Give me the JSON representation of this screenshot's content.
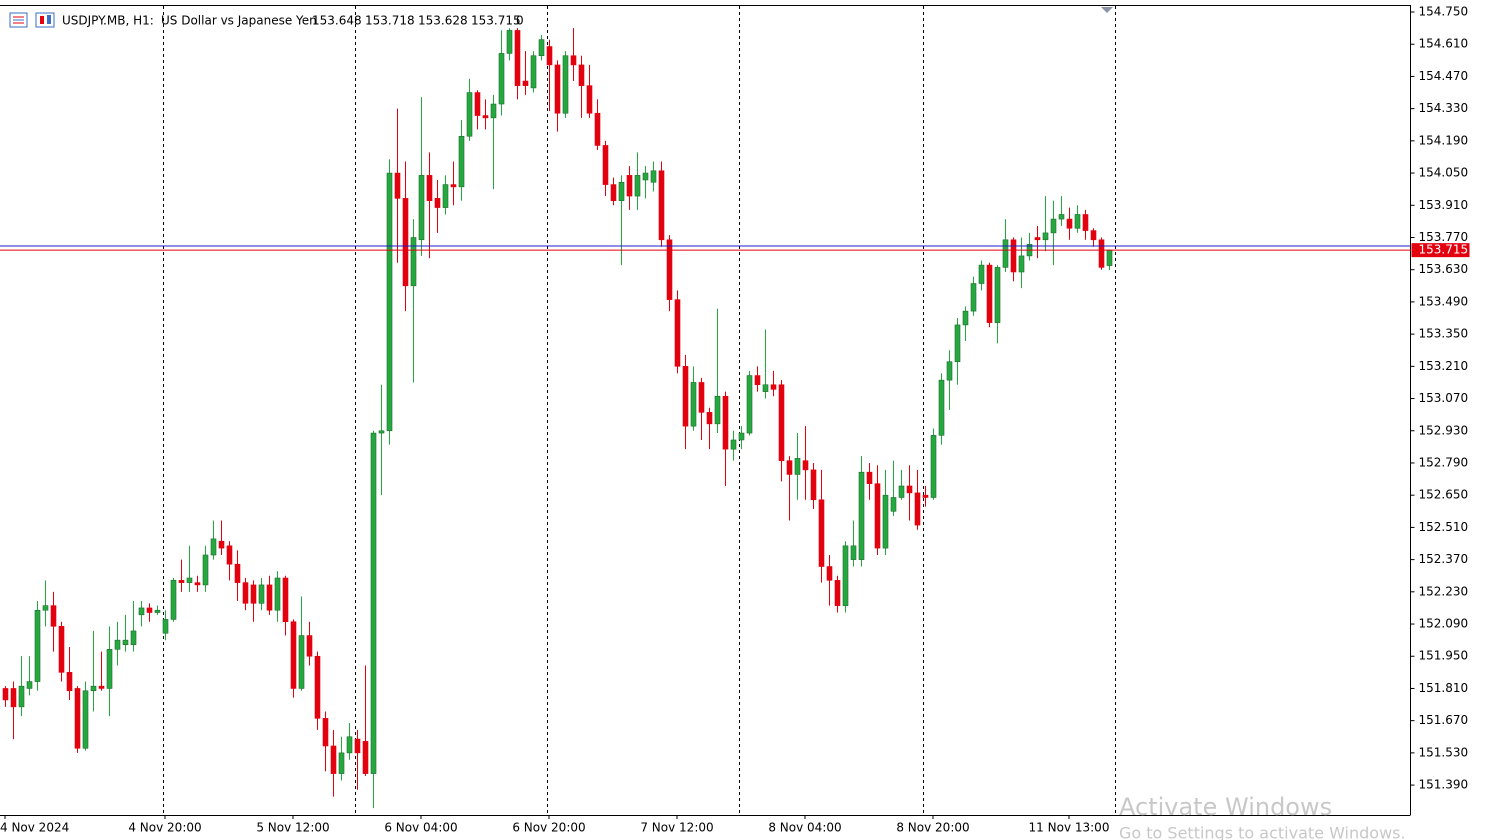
{
  "chart_data": {
    "type": "candlestick",
    "title": "USDJPY.MB, H1:",
    "subtitle": "US Dollar vs Japanese Yen",
    "spread": 0,
    "up_color": "#26a841",
    "down_color": "#e3000f",
    "bid_color": "#e3000f",
    "ask_color": "#1c1cc8",
    "ask": 153.733,
    "grid": false,
    "ylim": [
      151.26,
      154.8
    ],
    "yticks": [
      {
        "value": 154.75,
        "label": "154.750"
      },
      {
        "value": 154.61,
        "label": "154.610"
      },
      {
        "value": 154.47,
        "label": "154.470"
      },
      {
        "value": 154.33,
        "label": "154.330"
      },
      {
        "value": 154.19,
        "label": "154.190"
      },
      {
        "value": 154.05,
        "label": "154.050"
      },
      {
        "value": 153.91,
        "label": "153.910"
      },
      {
        "value": 153.77,
        "label": "153.770"
      },
      {
        "value": 153.63,
        "label": "153.630"
      },
      {
        "value": 153.49,
        "label": "153.490"
      },
      {
        "value": 153.35,
        "label": "153.350"
      },
      {
        "value": 153.21,
        "label": "153.210"
      },
      {
        "value": 153.07,
        "label": "153.070"
      },
      {
        "value": 152.93,
        "label": "152.930"
      },
      {
        "value": 152.79,
        "label": "152.790"
      },
      {
        "value": 152.65,
        "label": "152.650"
      },
      {
        "value": 152.51,
        "label": "152.510"
      },
      {
        "value": 152.37,
        "label": "152.370"
      },
      {
        "value": 152.23,
        "label": "152.230"
      },
      {
        "value": 152.09,
        "label": "152.090"
      },
      {
        "value": 151.95,
        "label": "151.950"
      },
      {
        "value": 151.81,
        "label": "151.810"
      },
      {
        "value": 151.67,
        "label": "151.670"
      },
      {
        "value": 151.53,
        "label": "151.530"
      },
      {
        "value": 151.39,
        "label": "151.390"
      }
    ],
    "categories": [
      "4 Nov 2024",
      null,
      null,
      null,
      null,
      null,
      null,
      null,
      null,
      null,
      null,
      null,
      null,
      null,
      null,
      null,
      null,
      null,
      null,
      null,
      "4 Nov 20:00",
      null,
      null,
      null,
      null,
      null,
      null,
      null,
      null,
      null,
      null,
      null,
      null,
      null,
      null,
      null,
      "5 Nov 12:00",
      null,
      null,
      null,
      null,
      null,
      null,
      null,
      null,
      null,
      null,
      null,
      null,
      null,
      null,
      null,
      "6 Nov 04:00",
      null,
      null,
      null,
      null,
      null,
      null,
      null,
      null,
      null,
      null,
      null,
      null,
      null,
      null,
      null,
      "6 Nov 20:00",
      null,
      null,
      null,
      null,
      null,
      null,
      null,
      null,
      null,
      null,
      null,
      null,
      null,
      null,
      null,
      "7 Nov 12:00",
      null,
      null,
      null,
      null,
      null,
      null,
      null,
      null,
      null,
      null,
      null,
      null,
      null,
      null,
      null,
      "8 Nov 04:00",
      null,
      null,
      null,
      null,
      null,
      null,
      null,
      null,
      null,
      null,
      null,
      null,
      null,
      null,
      null,
      "8 Nov 20:00",
      null,
      null,
      null,
      null,
      null,
      null,
      null,
      null,
      null,
      null,
      null,
      null,
      null,
      null,
      null,
      null,
      "11 Nov 13:00",
      null,
      null,
      null,
      null,
      null
    ],
    "series": [
      {
        "name": "USDJPY.MB",
        "open": [
          151.81,
          151.81,
          151.73,
          151.81,
          151.84,
          152.15,
          152.17,
          152.08,
          151.88,
          151.81,
          151.55,
          151.8,
          151.82,
          151.81,
          151.98,
          152.0,
          152.0,
          152.13,
          152.16,
          152.14,
          152.05,
          152.11,
          152.28,
          152.27,
          152.27,
          152.26,
          152.39,
          152.45,
          152.43,
          152.35,
          152.27,
          152.26,
          152.18,
          152.26,
          152.15,
          152.29,
          152.1,
          151.81,
          152.04,
          151.95,
          151.68,
          151.56,
          151.44,
          151.53,
          151.59,
          151.58,
          151.44,
          152.92,
          152.93,
          154.05,
          153.94,
          153.56,
          153.76,
          154.04,
          153.94,
          153.9,
          154.0,
          153.99,
          154.21,
          154.4,
          154.3,
          154.29,
          154.35,
          154.57,
          154.67,
          154.45,
          154.42,
          154.56,
          154.6,
          154.52,
          154.31,
          154.56,
          154.52,
          154.43,
          154.31,
          154.17,
          154.0,
          153.93,
          154.04,
          153.95,
          154.02,
          154.01,
          154.06,
          153.76,
          153.5,
          153.21,
          152.95,
          153.14,
          153.01,
          152.96,
          153.08,
          152.85,
          152.89,
          152.92,
          153.17,
          153.1,
          153.13,
          153.13,
          152.8,
          152.74,
          152.8,
          152.76,
          152.63,
          152.34,
          152.28,
          152.17,
          152.37,
          152.37,
          152.75,
          152.7,
          152.42,
          152.58,
          152.64,
          152.69,
          152.66,
          152.65,
          152.64,
          152.91,
          153.15,
          153.23,
          153.39,
          153.45,
          153.57,
          153.65,
          153.4,
          153.64,
          153.76,
          153.62,
          153.69,
          153.77,
          153.76,
          153.79,
          153.85,
          153.85,
          153.81,
          153.87,
          153.8,
          153.76,
          153.648
        ],
        "high": [
          151.82,
          151.84,
          151.95,
          151.95,
          152.19,
          152.28,
          152.23,
          152.1,
          151.99,
          151.82,
          151.84,
          152.06,
          151.97,
          152.08,
          152.1,
          152.13,
          152.19,
          152.19,
          152.18,
          152.17,
          152.15,
          152.29,
          152.37,
          152.43,
          152.3,
          152.43,
          152.54,
          152.54,
          152.45,
          152.41,
          152.29,
          152.28,
          152.29,
          152.3,
          152.32,
          152.3,
          152.11,
          152.21,
          152.1,
          151.97,
          151.71,
          151.63,
          151.6,
          151.66,
          151.63,
          151.91,
          152.93,
          153.13,
          154.11,
          154.33,
          154.1,
          153.85,
          154.38,
          154.14,
          154.02,
          154.04,
          154.1,
          154.28,
          154.46,
          154.41,
          154.37,
          154.39,
          154.67,
          154.68,
          154.68,
          154.58,
          154.58,
          154.65,
          154.63,
          154.54,
          154.58,
          154.68,
          154.56,
          154.52,
          154.37,
          154.19,
          154.03,
          154.04,
          154.08,
          154.14,
          154.08,
          154.1,
          154.1,
          153.78,
          153.54,
          153.26,
          153.21,
          153.16,
          153.03,
          153.46,
          153.1,
          152.93,
          152.95,
          153.19,
          153.21,
          153.37,
          153.19,
          153.15,
          152.82,
          152.92,
          152.95,
          152.79,
          152.76,
          152.39,
          152.3,
          152.45,
          152.54,
          152.82,
          152.79,
          152.78,
          152.76,
          152.8,
          152.76,
          152.78,
          152.76,
          152.69,
          152.94,
          153.18,
          153.28,
          153.42,
          153.47,
          153.6,
          153.67,
          153.66,
          153.65,
          153.85,
          153.77,
          153.77,
          153.79,
          153.82,
          153.95,
          153.93,
          153.95,
          153.9,
          153.91,
          153.89,
          153.81,
          153.77,
          153.718
        ],
        "low": [
          151.73,
          151.59,
          151.69,
          151.78,
          151.8,
          152.08,
          151.97,
          151.84,
          151.76,
          151.53,
          151.54,
          151.71,
          151.8,
          151.69,
          151.91,
          151.97,
          151.97,
          152.08,
          152.1,
          152.13,
          152.02,
          152.1,
          152.23,
          152.23,
          152.23,
          152.23,
          152.37,
          152.39,
          152.28,
          152.19,
          152.15,
          152.1,
          152.15,
          152.13,
          152.1,
          152.04,
          151.77,
          151.8,
          151.91,
          151.63,
          151.45,
          151.34,
          151.41,
          151.5,
          151.37,
          151.43,
          151.29,
          152.65,
          152.87,
          153.66,
          153.45,
          153.14,
          153.69,
          153.68,
          153.79,
          153.87,
          153.91,
          153.93,
          154.19,
          154.24,
          154.24,
          153.98,
          154.3,
          154.54,
          154.37,
          154.39,
          154.4,
          154.54,
          154.32,
          154.23,
          154.29,
          154.45,
          154.29,
          154.29,
          154.15,
          153.95,
          153.91,
          153.65,
          153.89,
          153.89,
          153.94,
          153.97,
          153.73,
          153.45,
          153.18,
          152.85,
          152.93,
          152.89,
          152.85,
          152.92,
          152.69,
          152.8,
          152.85,
          152.91,
          153.1,
          153.07,
          153.08,
          152.71,
          152.54,
          152.63,
          152.63,
          152.59,
          152.27,
          152.17,
          152.14,
          152.14,
          152.34,
          152.34,
          152.63,
          152.39,
          152.39,
          152.56,
          152.63,
          152.54,
          152.5,
          152.6,
          152.63,
          152.87,
          153.02,
          153.13,
          153.32,
          153.43,
          153.54,
          153.38,
          153.31,
          153.62,
          153.58,
          153.55,
          153.67,
          153.68,
          153.71,
          153.65,
          153.82,
          153.76,
          153.79,
          153.76,
          153.73,
          153.63,
          153.628
        ],
        "close": [
          151.76,
          151.73,
          151.82,
          151.84,
          152.15,
          152.17,
          152.08,
          151.88,
          151.8,
          151.55,
          151.8,
          151.82,
          151.81,
          151.98,
          152.02,
          152.02,
          152.06,
          152.16,
          152.14,
          152.15,
          152.11,
          152.28,
          152.27,
          152.29,
          152.26,
          152.39,
          152.46,
          152.42,
          152.35,
          152.27,
          152.18,
          152.18,
          152.26,
          152.15,
          152.29,
          152.1,
          151.81,
          152.04,
          151.95,
          151.68,
          151.56,
          151.44,
          151.53,
          151.6,
          151.53,
          151.44,
          152.92,
          152.93,
          154.05,
          153.94,
          153.56,
          153.77,
          154.04,
          153.93,
          153.9,
          154.0,
          153.99,
          154.21,
          154.4,
          154.3,
          154.29,
          154.35,
          154.57,
          154.67,
          154.43,
          154.43,
          154.56,
          154.63,
          154.52,
          154.31,
          154.56,
          154.52,
          154.43,
          154.31,
          154.17,
          154.0,
          153.93,
          154.01,
          153.95,
          154.04,
          154.05,
          154.06,
          153.76,
          153.5,
          153.21,
          152.95,
          153.14,
          153.01,
          152.96,
          153.08,
          152.85,
          152.89,
          152.92,
          153.17,
          153.13,
          153.13,
          153.11,
          152.8,
          152.74,
          152.81,
          152.76,
          152.63,
          152.34,
          152.28,
          152.17,
          152.43,
          152.43,
          152.75,
          152.7,
          152.42,
          152.65,
          152.64,
          152.69,
          152.66,
          152.52,
          152.64,
          152.91,
          153.15,
          153.23,
          153.39,
          153.45,
          153.57,
          153.65,
          153.4,
          153.64,
          153.76,
          153.62,
          153.69,
          153.74,
          153.76,
          153.79,
          153.85,
          153.87,
          153.81,
          153.87,
          153.8,
          153.76,
          153.64,
          153.715
        ]
      }
    ]
  },
  "os_overlay": {
    "title": "Activate Windows",
    "subtitle": "Go to Settings to activate Windows."
  }
}
